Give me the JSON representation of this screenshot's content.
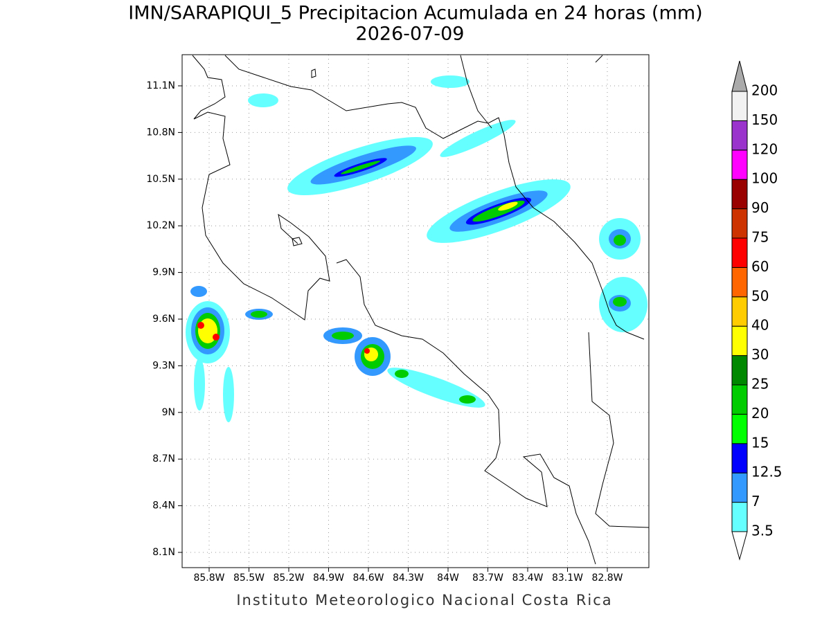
{
  "title": "IMN/SARAPIQUI_5 Precipitacion Acumulada en 24 horas (mm)",
  "subtitle": "2026-07-09",
  "map": {
    "lat_labels": [
      "11.1N",
      "10.8N",
      "10.5N",
      "10.2N",
      "9.9N",
      "9.6N",
      "9.3N",
      "9N",
      "8.7N",
      "8.4N",
      "8.1N"
    ],
    "lon_labels": [
      "85.8W",
      "85.5W",
      "85.2W",
      "84.9W",
      "84.6W",
      "84.3W",
      "84W",
      "83.7W",
      "83.4W",
      "83.1W",
      "82.8W"
    ]
  },
  "colorbar": {
    "labels": [
      "3.5",
      "7",
      "12.5",
      "15",
      "20",
      "25",
      "30",
      "40",
      "50",
      "60",
      "75",
      "90",
      "100",
      "120",
      "150",
      "200"
    ],
    "colors": [
      "#66ffff",
      "#3399ff",
      "#0000ff",
      "#00ff00",
      "#00cc00",
      "#008800",
      "#ffff00",
      "#ffcc00",
      "#ff6600",
      "#ff0000",
      "#cc3300",
      "#990000",
      "#ff00ff",
      "#9933cc",
      "#f2f2f2"
    ],
    "under_color": "#ffffff",
    "over_color": "#aaaaaa"
  },
  "footer": "Instituto Meteorologico Nacional Costa Rica"
}
